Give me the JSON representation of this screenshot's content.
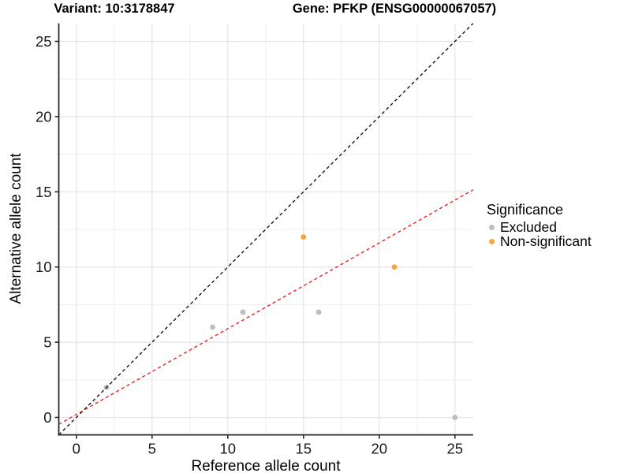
{
  "chart_data": {
    "type": "scatter",
    "title_variant": "Variant: 10:3178847",
    "title_gene": "Gene: PFKP (ENSG00000067057)",
    "xlabel": "Reference allele count",
    "ylabel": "Alternative allele count",
    "xlim": [
      -1.16,
      26.2
    ],
    "ylim": [
      -1.16,
      26.2
    ],
    "xticks": [
      0,
      5,
      10,
      15,
      20,
      25
    ],
    "yticks": [
      0,
      5,
      10,
      15,
      20,
      25
    ],
    "grid": "major-and-minor",
    "minor_ticks": [
      2.5,
      7.5,
      12.5,
      17.5,
      22.5
    ],
    "series": [
      {
        "name": "Excluded",
        "color": "#BDBDBD",
        "points": [
          [
            2,
            2
          ],
          [
            9,
            6
          ],
          [
            11,
            7
          ],
          [
            16,
            7
          ],
          [
            25,
            0
          ]
        ]
      },
      {
        "name": "Non-significant",
        "color": "#FAA43A",
        "points": [
          [
            15,
            12
          ],
          [
            21,
            10
          ]
        ]
      }
    ],
    "lines": [
      {
        "name": "identity-line",
        "slope": 1,
        "intercept": 0,
        "color": "#141414",
        "style": "dashed"
      },
      {
        "name": "expected-ratio-line",
        "slope": 0.57,
        "intercept": 0.2,
        "color": "#EE2222",
        "style": "dashed"
      }
    ],
    "legend": {
      "title": "Significance",
      "position": "right",
      "entries": [
        {
          "label": "Excluded",
          "color": "#BDBDBD"
        },
        {
          "label": "Non-significant",
          "color": "#FAA43A"
        }
      ]
    },
    "colors": {
      "grid_major": "#E4E4E4",
      "grid_minor": "#F0F0F0",
      "axis_line": "#2B2B2B",
      "tick_label": "#1A1A1A"
    }
  }
}
